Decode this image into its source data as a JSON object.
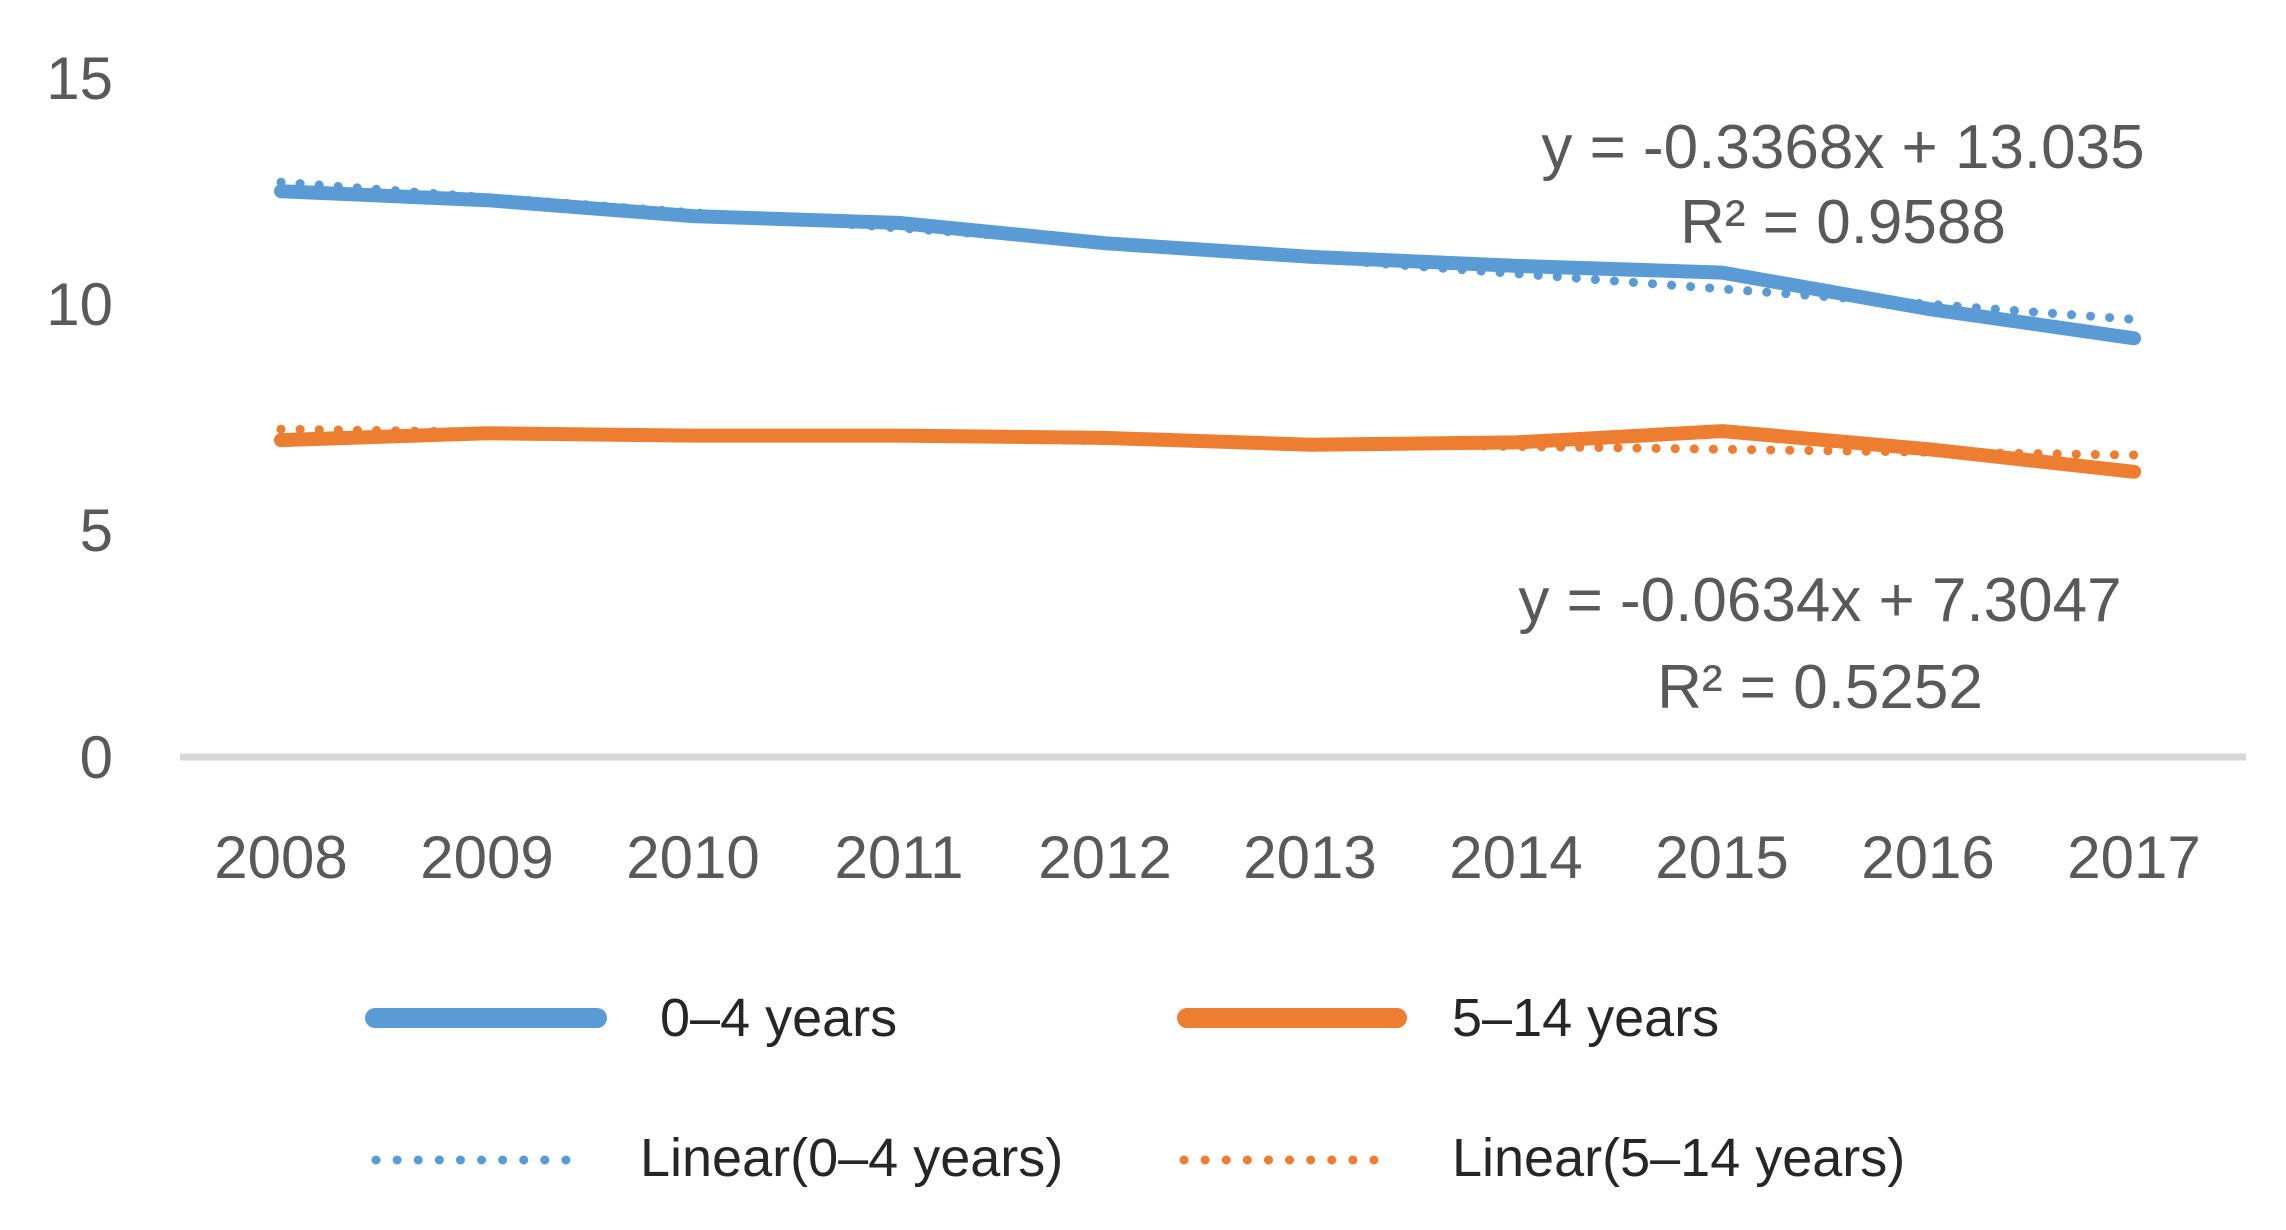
{
  "chart_data": {
    "type": "line",
    "title": "",
    "xlabel": "",
    "ylabel": "",
    "x_labels": [
      "2008",
      "2009",
      "2010",
      "2011",
      "2012",
      "2013",
      "2014",
      "2015",
      "2016",
      "2017"
    ],
    "y_ticks": [
      "15",
      "10",
      "5",
      "0"
    ],
    "ylim": [
      0,
      15
    ],
    "grid": false,
    "legend_position": "bottom",
    "series": [
      {
        "name": "0–4 years",
        "color": "#5B9BD5",
        "style": "solid",
        "values": [
          12.5,
          12.3,
          11.95,
          11.8,
          11.35,
          11.05,
          10.85,
          10.7,
          9.9,
          9.25
        ]
      },
      {
        "name": "5–14 years",
        "color": "#ED7D31",
        "style": "solid",
        "values": [
          7.0,
          7.15,
          7.1,
          7.1,
          7.05,
          6.9,
          6.95,
          7.2,
          6.8,
          6.3
        ]
      }
    ],
    "trendlines": [
      {
        "name": "Linear(0–4 years)",
        "color": "#5B9BD5",
        "style": "dotted",
        "slope": -0.3368,
        "intercept": 13.035,
        "equation": "y = -0.3368x + 13.035",
        "r_squared": "R² = 0.9588"
      },
      {
        "name": "Linear(5–14 years)",
        "color": "#ED7D31",
        "style": "dotted",
        "slope": -0.0634,
        "intercept": 7.3047,
        "equation": "y = -0.0634x + 7.3047",
        "r_squared": "R² = 0.5252"
      }
    ],
    "colors": {
      "series_blue": "#5B9BD5",
      "series_orange": "#ED7D31",
      "axis_line": "#D6D6D6",
      "axis_text": "#595959",
      "equation_text": "#595959",
      "legend_text": "#262626"
    }
  }
}
